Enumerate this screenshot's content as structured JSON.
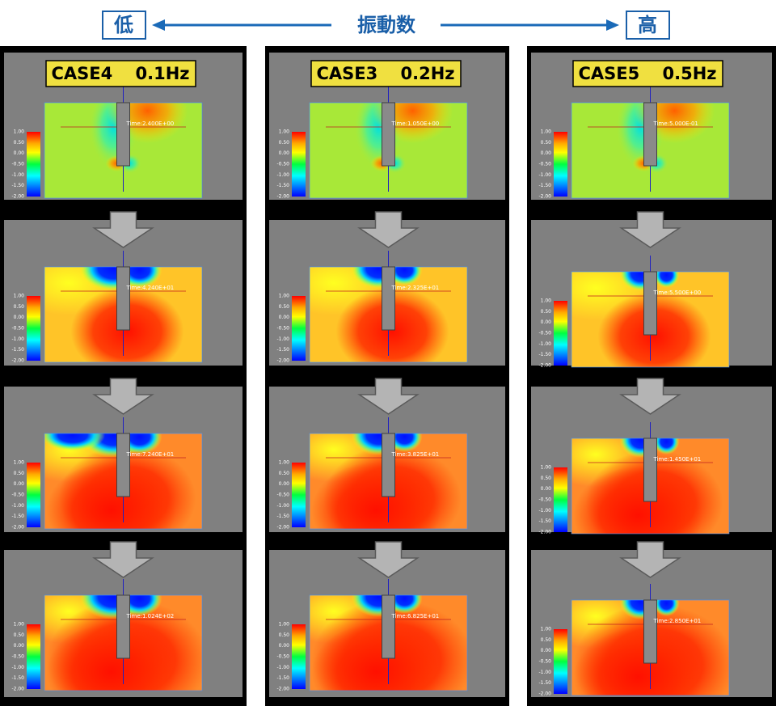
{
  "header": {
    "low": "低",
    "title": "振動数",
    "high": "高"
  },
  "colorbar_ticks": [
    "1.00",
    "0.50",
    "0.00",
    "-0.50",
    "-1.00",
    "-1.50",
    "-2.00"
  ],
  "columns": [
    {
      "label": "CASE4　 0.1Hz",
      "panels": [
        {
          "time": "Time:2.400E+00"
        },
        {
          "time": "Time:4.240E+01"
        },
        {
          "time": "Time:7.240E+01"
        },
        {
          "time": "Time:1.024E+02"
        }
      ]
    },
    {
      "label": "CASE3　 0.2Hz",
      "panels": [
        {
          "time": "Time:1.050E+00"
        },
        {
          "time": "Time:2.325E+01"
        },
        {
          "time": "Time:3.825E+01"
        },
        {
          "time": "Time:6.825E+01"
        }
      ]
    },
    {
      "label": "CASE5　 0.5Hz",
      "panels": [
        {
          "time": "Time:5.000E-01"
        },
        {
          "time": "Time:5.500E+00"
        },
        {
          "time": "Time:1.450E+01"
        },
        {
          "time": "Time:2.850E+01"
        }
      ]
    }
  ]
}
